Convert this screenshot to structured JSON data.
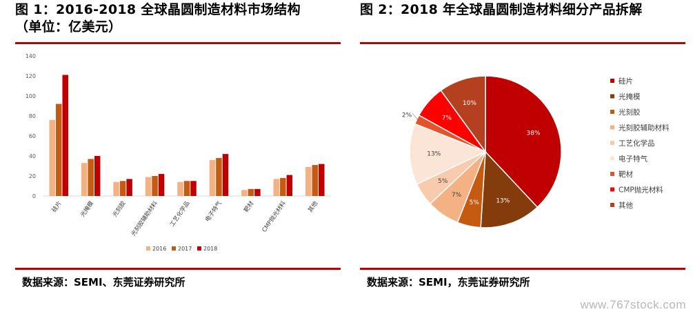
{
  "left": {
    "title_line1": "图 1：2016-2018 全球晶圆制造材料市场结构",
    "title_line2": "（单位：亿美元）",
    "source": "数据来源：SEMI、东莞证券研究所"
  },
  "right": {
    "title": "图 2：2018 年全球晶圆制造材料细分产品拆解",
    "source": "数据来源：SEMI，东莞证券研究所"
  },
  "watermark": "www.767stock.com",
  "colors": {
    "rule": "#c00000",
    "s2016": "#f4b183",
    "s2017": "#c55a11",
    "s2018": "#c00000"
  },
  "chart_data": [
    {
      "type": "bar",
      "title": "",
      "categories": [
        "硅片",
        "光掩模",
        "光刻胶",
        "光刻胶辅助材料",
        "工艺化学品",
        "电子特气",
        "靶材",
        "CMP抛光材料",
        "其他"
      ],
      "series": [
        {
          "name": "2016",
          "values": [
            76,
            33,
            14,
            19,
            14,
            36,
            6,
            17,
            29
          ]
        },
        {
          "name": "2017",
          "values": [
            92,
            37,
            15,
            20,
            15,
            38,
            7,
            18,
            31
          ]
        },
        {
          "name": "2018",
          "values": [
            121,
            40,
            17,
            22,
            15,
            42,
            7,
            21,
            32
          ]
        }
      ],
      "yticks": [
        0,
        20,
        40,
        60,
        80,
        100,
        120,
        140
      ],
      "ylim": [
        0,
        140
      ],
      "xlabel": "",
      "ylabel": "",
      "grid": false,
      "legend": "bottom"
    },
    {
      "type": "pie",
      "title": "",
      "labels": [
        "硅片",
        "光掩模",
        "光刻胶",
        "光刻胶辅助材料",
        "工艺化学品",
        "电子特气",
        "靶材",
        "CMP抛光材料",
        "其他"
      ],
      "values": [
        38,
        13,
        5,
        7,
        5,
        13,
        2,
        7,
        10
      ],
      "value_labels": [
        "38%",
        "13%",
        "5%",
        "7%",
        "5%",
        "13%",
        "2%",
        "7%",
        "10%"
      ],
      "colors": [
        "#c00000",
        "#843c0c",
        "#c55a11",
        "#f4b183",
        "#f8cbad",
        "#fbe5d6",
        "#e2542a",
        "#ff0000",
        "#b5401f"
      ],
      "legend": "right"
    }
  ]
}
